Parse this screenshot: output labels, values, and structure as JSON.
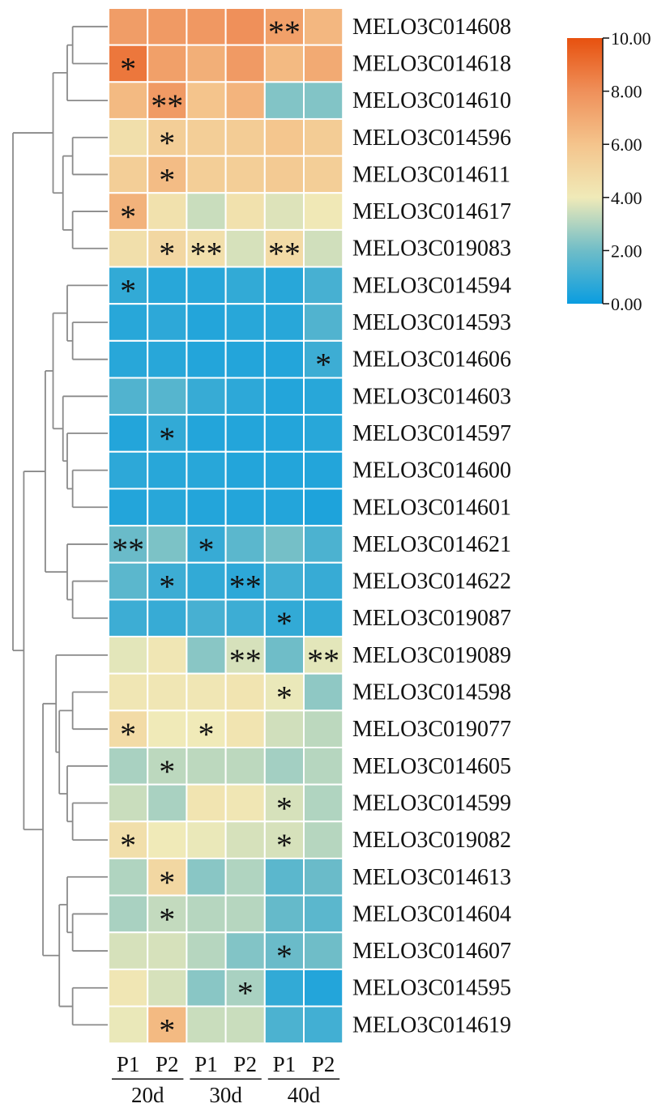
{
  "chart_data": {
    "type": "heatmap",
    "title": "",
    "rows": [
      "MELO3C014608",
      "MELO3C014618",
      "MELO3C014610",
      "MELO3C014596",
      "MELO3C014611",
      "MELO3C014617",
      "MELO3C019083",
      "MELO3C014594",
      "MELO3C014593",
      "MELO3C014606",
      "MELO3C014603",
      "MELO3C014597",
      "MELO3C014600",
      "MELO3C014601",
      "MELO3C014621",
      "MELO3C014622",
      "MELO3C019087",
      "MELO3C019089",
      "MELO3C014598",
      "MELO3C019077",
      "MELO3C014605",
      "MELO3C014599",
      "MELO3C019082",
      "MELO3C014613",
      "MELO3C014604",
      "MELO3C014607",
      "MELO3C014595",
      "MELO3C014619"
    ],
    "columns": [
      "P1",
      "P2",
      "P1",
      "P2",
      "P1",
      "P2"
    ],
    "column_groups": [
      {
        "label": "20d",
        "span": 2
      },
      {
        "label": "30d",
        "span": 2
      },
      {
        "label": "40d",
        "span": 2
      }
    ],
    "values": [
      [
        7.5,
        7.6,
        7.7,
        8.0,
        7.4,
        6.5
      ],
      [
        8.8,
        7.4,
        6.8,
        7.6,
        6.4,
        7.0
      ],
      [
        6.4,
        7.6,
        6.0,
        6.6,
        2.3,
        2.3
      ],
      [
        4.6,
        5.5,
        5.5,
        5.6,
        5.9,
        5.6
      ],
      [
        5.5,
        6.3,
        5.5,
        5.5,
        5.7,
        5.5
      ],
      [
        6.7,
        4.5,
        3.4,
        4.5,
        3.7,
        4.1
      ],
      [
        4.6,
        5.0,
        4.6,
        3.6,
        4.8,
        3.5
      ],
      [
        0.8,
        0.6,
        0.6,
        0.8,
        0.6,
        1.2
      ],
      [
        0.6,
        0.7,
        0.5,
        0.6,
        0.6,
        1.4
      ],
      [
        0.6,
        0.6,
        0.5,
        0.5,
        0.5,
        1.0
      ],
      [
        1.4,
        1.5,
        0.9,
        0.7,
        0.5,
        0.6
      ],
      [
        0.5,
        0.8,
        0.5,
        0.5,
        0.5,
        0.6
      ],
      [
        0.7,
        0.6,
        0.6,
        0.5,
        0.5,
        0.5
      ],
      [
        0.5,
        0.6,
        0.5,
        0.5,
        0.5,
        0.4
      ],
      [
        1.9,
        2.2,
        0.9,
        1.6,
        2.1,
        1.3
      ],
      [
        1.6,
        1.0,
        0.8,
        0.7,
        1.1,
        0.9
      ],
      [
        1.0,
        0.9,
        1.2,
        1.0,
        0.8,
        0.8
      ],
      [
        3.8,
        4.2,
        2.4,
        3.6,
        2.0,
        3.8
      ],
      [
        4.2,
        4.2,
        4.2,
        4.3,
        3.9,
        2.5
      ],
      [
        4.8,
        4.0,
        4.0,
        4.3,
        3.5,
        3.2
      ],
      [
        2.9,
        3.2,
        3.2,
        3.2,
        2.8,
        3.1
      ],
      [
        3.4,
        2.9,
        4.3,
        4.2,
        3.6,
        3.0
      ],
      [
        4.6,
        4.0,
        3.9,
        3.6,
        3.6,
        3.1
      ],
      [
        3.0,
        5.0,
        2.4,
        3.0,
        1.6,
        1.9
      ],
      [
        2.9,
        3.3,
        3.1,
        3.1,
        1.8,
        1.6
      ],
      [
        3.6,
        3.6,
        3.1,
        2.3,
        1.9,
        2.0
      ],
      [
        4.2,
        3.6,
        2.4,
        2.9,
        0.8,
        0.5
      ],
      [
        3.9,
        6.4,
        3.4,
        3.4,
        1.3,
        1.1
      ]
    ],
    "significance": [
      [
        "",
        "",
        "",
        "",
        "**",
        ""
      ],
      [
        "*",
        "",
        "",
        "",
        "",
        ""
      ],
      [
        "",
        "**",
        "",
        "",
        "",
        ""
      ],
      [
        "",
        "*",
        "",
        "",
        "",
        ""
      ],
      [
        "",
        "*",
        "",
        "",
        "",
        ""
      ],
      [
        "*",
        "",
        "",
        "",
        "",
        ""
      ],
      [
        "",
        "*",
        "**",
        "",
        "**",
        ""
      ],
      [
        "*",
        "",
        "",
        "",
        "",
        ""
      ],
      [
        "",
        "",
        "",
        "",
        "",
        ""
      ],
      [
        "",
        "",
        "",
        "",
        "",
        "*"
      ],
      [
        "",
        "",
        "",
        "",
        "",
        ""
      ],
      [
        "",
        "*",
        "",
        "",
        "",
        ""
      ],
      [
        "",
        "",
        "",
        "",
        "",
        ""
      ],
      [
        "",
        "",
        "",
        "",
        "",
        ""
      ],
      [
        "**",
        "",
        "*",
        "",
        "",
        ""
      ],
      [
        "",
        "*",
        "",
        "**",
        "",
        ""
      ],
      [
        "",
        "",
        "",
        "",
        "*",
        ""
      ],
      [
        "",
        "",
        "",
        "**",
        "",
        "**"
      ],
      [
        "",
        "",
        "",
        "",
        "*",
        ""
      ],
      [
        "*",
        "",
        "*",
        "",
        "",
        ""
      ],
      [
        "",
        "*",
        "",
        "",
        "",
        ""
      ],
      [
        "",
        "",
        "",
        "",
        "*",
        ""
      ],
      [
        "*",
        "",
        "",
        "",
        "*",
        ""
      ],
      [
        "",
        "*",
        "",
        "",
        "",
        ""
      ],
      [
        "",
        "*",
        "",
        "",
        "",
        ""
      ],
      [
        "",
        "",
        "",
        "",
        "*",
        ""
      ],
      [
        "",
        "",
        "",
        "*",
        "",
        ""
      ],
      [
        "",
        "*",
        "",
        "",
        "",
        ""
      ]
    ],
    "color_scale": {
      "min": 0,
      "max": 10,
      "stops": [
        {
          "value": 0,
          "color": "#0a9de0"
        },
        {
          "value": 2,
          "color": "#6fbdc8"
        },
        {
          "value": 4,
          "color": "#f0eab8"
        },
        {
          "value": 6,
          "color": "#f4c48c"
        },
        {
          "value": 8,
          "color": "#ef905a"
        },
        {
          "value": 10,
          "color": "#e7510f"
        }
      ],
      "tick_labels": [
        "10.00",
        "8.00",
        "6.00",
        "4.00",
        "2.00",
        "0.00"
      ]
    },
    "dendrogram": {
      "side": "left",
      "tree": [
        [
          [
            [
              0,
              1
            ],
            2
          ],
          [
            [
              3,
              4
            ],
            [
              5,
              6
            ]
          ]
        ],
        [
          [
            [
              [
                [
                  7,
                  [
                    8,
                    9
                  ]
                ],
                [
                  10,
                  [
                    11,
                    [
                      12,
                      13
                    ]
                  ]
                ]
              ],
              [
                14,
                [
                  15,
                  16
                ]
              ]
            ]
          ],
          [
            [
              17,
              [
                [
                  18,
                  19
                ],
                [
                  20,
                  [
                    21,
                    22
                  ]
                ]
              ]
            ],
            [
              [
                23,
                [
                  24,
                  25
                ]
              ],
              [
                26,
                27
              ]
            ]
          ]
        ]
      ]
    },
    "legend_position": "top-right",
    "colors": {
      "grid_line": "#ffffff",
      "dendrogram_line": "#8a8a8a",
      "text": "#111111"
    }
  }
}
